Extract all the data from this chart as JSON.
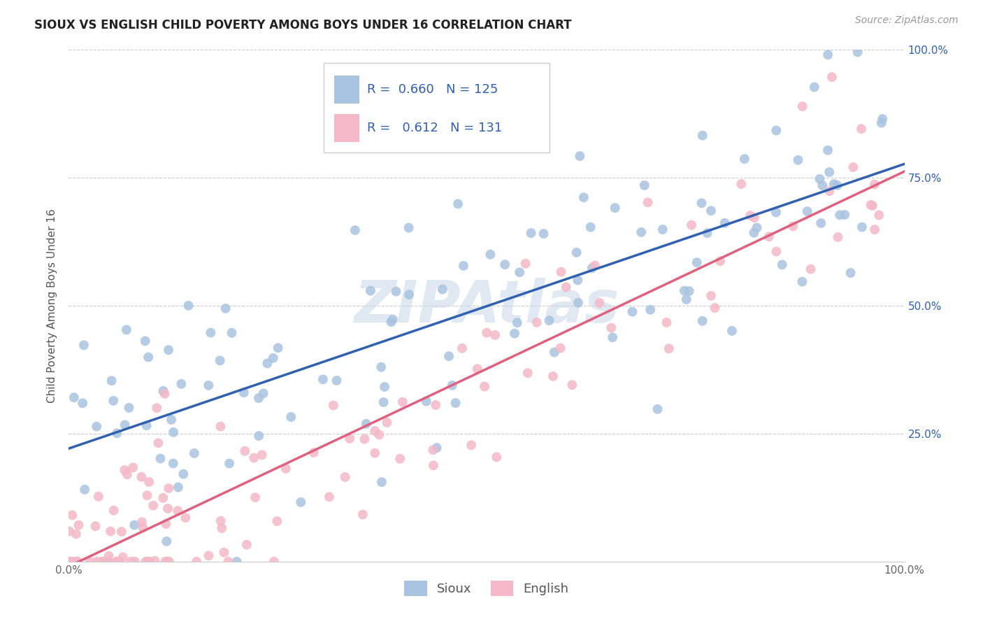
{
  "title": "SIOUX VS ENGLISH CHILD POVERTY AMONG BOYS UNDER 16 CORRELATION CHART",
  "source": "Source: ZipAtlas.com",
  "ylabel": "Child Poverty Among Boys Under 16",
  "xlim": [
    0.0,
    1.0
  ],
  "ylim": [
    0.0,
    1.0
  ],
  "sioux_R": 0.66,
  "sioux_N": 125,
  "english_R": 0.612,
  "english_N": 131,
  "sioux_color": "#a8c4e0",
  "english_color": "#f4b8c8",
  "sioux_line_color": "#3060b0",
  "english_line_color": "#e06080",
  "background_color": "#ffffff",
  "sioux_intercept": 0.2,
  "sioux_slope": 0.6,
  "english_intercept": -0.03,
  "english_slope": 0.77
}
